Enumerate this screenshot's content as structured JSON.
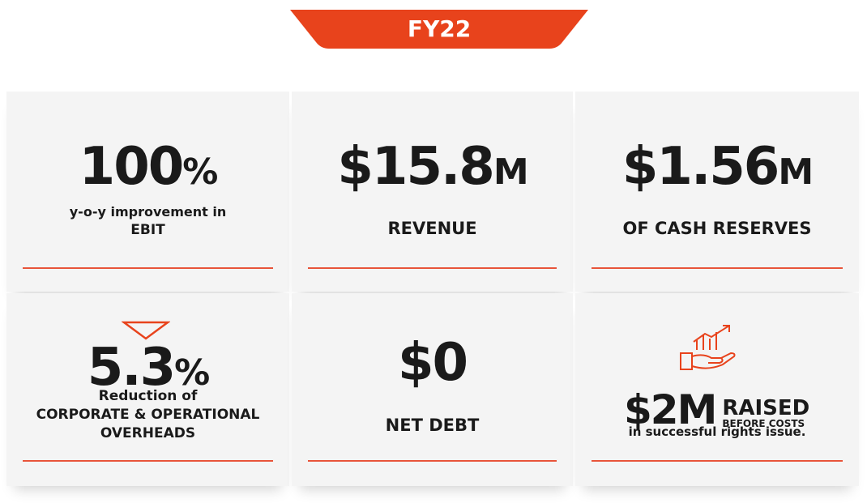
{
  "header": {
    "title": "FY22"
  },
  "tiles": [
    {
      "value": "100",
      "unit": "%",
      "lines": [
        "y-o-y improvement in",
        "EBIT"
      ]
    },
    {
      "value": "$15.8",
      "unit": "M",
      "lines": [
        "REVENUE"
      ]
    },
    {
      "value": "$1.56",
      "unit": "M",
      "lines": [
        "OF CASH RESERVES"
      ]
    },
    {
      "value": "5.3",
      "unit": "%",
      "lines": [
        "Reduction of",
        "CORPORATE & OPERATIONAL",
        "OVERHEADS"
      ]
    },
    {
      "value": "$0",
      "lines": [
        "NET DEBT"
      ]
    },
    {
      "value": "$2M",
      "side": [
        "RAISED",
        "BEFORE COSTS"
      ],
      "lines": [
        "in successful rights issue."
      ]
    }
  ]
}
